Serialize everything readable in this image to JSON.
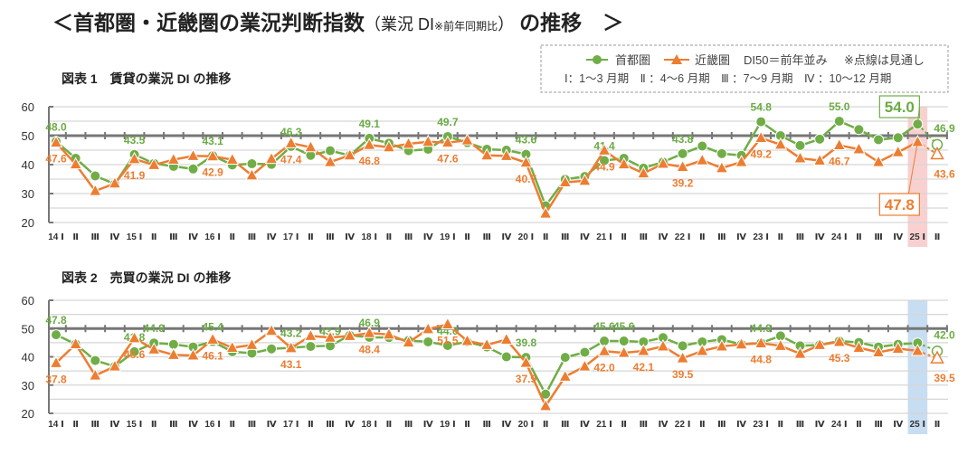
{
  "title": {
    "main_prefix": "＜首都圏・近畿圏の業況判断指数",
    "paren_main": "（業況 DI",
    "paren_note": "※前年同期比",
    "paren_close": "）",
    "main_suffix": "の推移　＞"
  },
  "legend": {
    "series1": "首都圏",
    "series2": "近畿圏",
    "note1": "DI50＝前年並み",
    "note2": "※点線は見通し",
    "quarters": "Ⅰ：1～3 月期　Ⅱ ：4～6 月期　Ⅲ ：7～9 月期　Ⅳ ：10～12 月期"
  },
  "colors": {
    "series1": "#70AD47",
    "series2": "#ED7D31",
    "highlight1": "#F8C8C8",
    "highlight2": "#BDD7EE"
  },
  "chart_data": [
    {
      "type": "line",
      "title": "図表 1　賃貸の業況 DI の推移",
      "ylim": [
        20,
        60
      ],
      "yticks": [
        20,
        30,
        40,
        50,
        60
      ],
      "reference_line": 50,
      "grid": true,
      "categories": [
        "14 Ⅰ",
        "Ⅱ",
        "Ⅲ",
        "Ⅳ",
        "15 Ⅰ",
        "Ⅱ",
        "Ⅲ",
        "Ⅳ",
        "16 Ⅰ",
        "Ⅱ",
        "Ⅲ",
        "Ⅳ",
        "17 Ⅰ",
        "Ⅱ",
        "Ⅲ",
        "Ⅳ",
        "18 Ⅰ",
        "Ⅱ",
        "Ⅲ",
        "Ⅳ",
        "19 Ⅰ",
        "Ⅱ",
        "Ⅲ",
        "Ⅳ",
        "20 Ⅰ",
        "Ⅱ",
        "Ⅲ",
        "Ⅳ",
        "21 Ⅰ",
        "Ⅱ",
        "Ⅲ",
        "Ⅳ",
        "22 Ⅰ",
        "Ⅱ",
        "Ⅲ",
        "Ⅳ",
        "23 Ⅰ",
        "Ⅱ",
        "Ⅲ",
        "Ⅳ",
        "24 Ⅰ",
        "Ⅱ",
        "Ⅲ",
        "Ⅳ",
        "25 Ⅰ",
        "Ⅱ"
      ],
      "highlight_category": "25 Ⅰ",
      "forecast_last": true,
      "series": [
        {
          "name": "首都圏",
          "values": [
            48.0,
            42.2,
            36.1,
            33.3,
            43.5,
            40.4,
            39.4,
            38.5,
            43.1,
            39.9,
            40.3,
            40.1,
            46.3,
            43.2,
            44.8,
            43.2,
            49.1,
            47.4,
            44.8,
            45.3,
            49.7,
            47.6,
            45.3,
            45.0,
            43.6,
            25.8,
            34.9,
            35.9,
            41.4,
            42.2,
            38.8,
            40.9,
            43.8,
            46.4,
            43.8,
            43.2,
            54.8,
            50.0,
            46.6,
            48.8,
            55.0,
            52.1,
            48.6,
            49.3,
            54.0,
            46.9
          ],
          "labeled_points": [
            "48.0",
            "43.5",
            "43.1",
            "46.3",
            "49.1",
            "49.7",
            "43.6",
            "41.4",
            "43.8",
            "54.8",
            "55.0",
            "54.0",
            "46.9"
          ]
        },
        {
          "name": "近畿圏",
          "values": [
            47.6,
            40.1,
            30.9,
            33.5,
            41.9,
            39.9,
            41.7,
            43.0,
            42.9,
            41.7,
            36.3,
            42.0,
            47.4,
            46.0,
            40.9,
            43.2,
            46.8,
            46.0,
            47.2,
            47.9,
            47.6,
            48.4,
            43.2,
            43.0,
            40.7,
            23.1,
            33.9,
            34.4,
            44.9,
            40.1,
            37.0,
            40.3,
            39.2,
            41.5,
            38.8,
            40.9,
            49.2,
            46.9,
            42.2,
            41.4,
            46.7,
            45.3,
            40.9,
            44.3,
            47.8,
            43.6
          ],
          "labeled_points": [
            "47.6",
            "41.9",
            "42.9",
            "47.4",
            "46.8",
            "47.6",
            "40.7",
            "44.9",
            "39.2",
            "49.2",
            "46.7",
            "47.8",
            "43.6"
          ]
        }
      ]
    },
    {
      "type": "line",
      "title": "図表 2　売買の業況 DI の推移",
      "ylim": [
        20,
        60
      ],
      "yticks": [
        20,
        30,
        40,
        50,
        60
      ],
      "reference_line": 50,
      "grid": true,
      "categories": [
        "14 Ⅰ",
        "Ⅱ",
        "Ⅲ",
        "Ⅳ",
        "15 Ⅰ",
        "Ⅱ",
        "Ⅲ",
        "Ⅳ",
        "16 Ⅰ",
        "Ⅱ",
        "Ⅲ",
        "Ⅳ",
        "17 Ⅰ",
        "Ⅱ",
        "Ⅲ",
        "Ⅳ",
        "18 Ⅰ",
        "Ⅱ",
        "Ⅲ",
        "Ⅳ",
        "19 Ⅰ",
        "Ⅱ",
        "Ⅲ",
        "Ⅳ",
        "20 Ⅰ",
        "Ⅱ",
        "Ⅲ",
        "Ⅳ",
        "21 Ⅰ",
        "Ⅱ",
        "Ⅲ",
        "Ⅳ",
        "22 Ⅰ",
        "Ⅱ",
        "Ⅲ",
        "Ⅳ",
        "23 Ⅰ",
        "Ⅱ",
        "Ⅲ",
        "Ⅳ",
        "24 Ⅰ",
        "Ⅱ",
        "Ⅲ",
        "Ⅳ",
        "25 Ⅰ",
        "Ⅱ"
      ],
      "highlight_category": "25 Ⅰ",
      "forecast_last": true,
      "series": [
        {
          "name": "首都圏",
          "values": [
            47.8,
            44.5,
            38.7,
            36.6,
            41.8,
            44.9,
            44.4,
            43.5,
            45.4,
            41.8,
            41.3,
            42.8,
            43.2,
            43.7,
            43.9,
            47.6,
            46.9,
            46.8,
            45.8,
            45.3,
            44.0,
            45.3,
            43.5,
            40.0,
            39.8,
            26.8,
            39.8,
            41.6,
            45.6,
            45.6,
            45.3,
            46.8,
            43.9,
            45.3,
            46.1,
            44.4,
            44.9,
            47.4,
            43.9,
            44.2,
            45.6,
            45.1,
            43.5,
            44.4,
            44.9,
            42.0
          ],
          "labeled_points": [
            "47.8",
            "41.8",
            "45.4",
            "43.2",
            "46.9",
            "44.0",
            "39.8",
            "45.6",
            "43.9",
            "44.9",
            "45.6",
            "44.9",
            "42.0"
          ]
        },
        {
          "name": "近畿圏",
          "values": [
            37.8,
            44.5,
            33.4,
            36.6,
            46.6,
            42.6,
            40.7,
            40.5,
            46.1,
            43.2,
            44.2,
            49.2,
            43.1,
            47.4,
            46.8,
            47.4,
            48.4,
            47.9,
            45.1,
            49.8,
            51.5,
            45.6,
            44.2,
            46.1,
            37.9,
            22.6,
            33.0,
            36.6,
            42.0,
            41.4,
            42.1,
            43.7,
            39.5,
            42.1,
            43.7,
            44.4,
            44.8,
            43.9,
            41.1,
            44.2,
            45.3,
            43.2,
            41.6,
            42.9,
            42.1,
            39.5
          ],
          "labeled_points": [
            "37.8",
            "46.6",
            "46.1",
            "43.1",
            "48.4",
            "51.5",
            "37.9",
            "42.0",
            "39.5",
            "44.8",
            "45.3",
            "42.1",
            "39.5"
          ]
        }
      ]
    }
  ]
}
